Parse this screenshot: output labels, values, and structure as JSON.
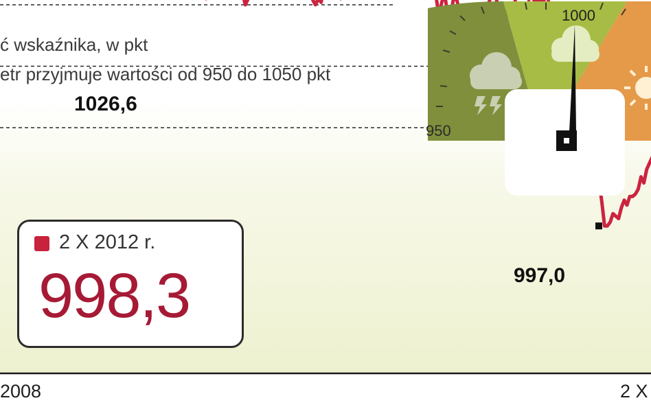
{
  "subtitle": {
    "line1": "ć wskaźnika, w pkt",
    "line2": "etr przyjmuje wartości od 950 do 1050 pkt"
  },
  "gauge": {
    "label_min": "950",
    "label_mid": "1000",
    "colors": {
      "left": "#7f8f3c",
      "middle": "#a6bc45",
      "right": "#e59a4a",
      "face": "#ffffff",
      "needle": "#111111"
    },
    "icons": [
      "storm-cloud-icon",
      "cloud-icon",
      "sun-icon"
    ]
  },
  "value_box": {
    "date": "2 X 2012 r.",
    "value": "998,3",
    "marker_color": "#c8223c",
    "value_color": "#a61a35"
  },
  "chart_data": {
    "type": "line",
    "title": "",
    "xlabel": "",
    "ylabel": "",
    "x_tick_labels": [
      "2008",
      "2 X"
    ],
    "ylim": [
      985,
      1032
    ],
    "grid": true,
    "series_color": "#cc2440",
    "annotations": [
      {
        "text": "1026,6",
        "index": 18,
        "value": 1026.6
      },
      {
        "text": "997,0",
        "index": 208,
        "value": 997.0
      }
    ],
    "values": [
      1024.2,
      1023.2,
      1023.1,
      1022.9,
      1022.8,
      1023.5,
      1022.5,
      1023.6,
      1024.9,
      1024.6,
      1025.1,
      1025.1,
      1025.2,
      1025.8,
      1026.7,
      1025.6,
      1025.9,
      1026.5,
      1026.6,
      1026.7,
      1025.8,
      1026.3,
      1025.1,
      1026.0,
      1025.7,
      1025.8,
      1025.2,
      1025.2,
      1025.6,
      1025.9,
      1024.7,
      1025.6,
      1024.7,
      1025.0,
      1025.6,
      1025.9,
      1025.2,
      1024.8,
      1025.9,
      1024.2,
      1024.5,
      1025.3,
      1024.9,
      1024.8,
      1025.7,
      1025.0,
      1025.3,
      1024.8,
      1024.8,
      1024.9,
      1023.7,
      1023.6,
      1021.7,
      1021.7,
      1022.2,
      1021.3,
      1021.8,
      1020.9,
      1021.5,
      1021.6,
      1022.6,
      1021.4,
      1021.4,
      1022.1,
      1019.5,
      1015.6,
      1015.8,
      1015.6,
      1015.8,
      1016.0,
      1015.5,
      1016.5,
      1016.7,
      1017.2,
      1016.4,
      1017.5,
      1016.6,
      1016.2,
      1016.0,
      1015.6,
      1016.6,
      1015.9,
      1015.8,
      1015.9,
      1015.0,
      1015.5,
      1016.3,
      1015.6,
      1016.4,
      1016.8,
      1016.4,
      1016.8,
      1017.3,
      1017.6,
      1016.8,
      1018.1,
      1018.7,
      1017.6,
      1018.1,
      1017.6,
      1017.9,
      1017.7,
      1017.3,
      1017.1,
      1016.3,
      1017.1,
      1017.0,
      1016.8,
      1015.4,
      1015.0,
      1015.5,
      1015.2,
      1016.3,
      1016.0,
      1015.7,
      1017.0,
      1016.9,
      1016.4,
      1015.5,
      1017.5,
      1017.7,
      1016.9,
      1017.5,
      1017.6,
      1018.5,
      1017.4,
      1017.4,
      1018.1,
      1018.0,
      1017.2,
      1017.6,
      1017.8,
      1018.0,
      1017.5,
      1017.3,
      1017.3,
      1017.8,
      1017.6,
      1017.1,
      1017.1,
      1017.2,
      1017.6,
      1017.2,
      1016.2,
      1017.4,
      1017.1,
      1017.6,
      1016.8,
      1016.2,
      1016.8,
      1016.0,
      1015.8,
      1015.6,
      1014.1,
      1015.2,
      1015.9,
      1014.4,
      1013.9,
      1015.3,
      1015.7,
      1014.8,
      1013.7,
      1013.4,
      1013.6,
      1013.2,
      1013.4,
      1014.2,
      1013.4,
      1013.7,
      1014.5,
      1014.7,
      1015.3,
      1016.6,
      1016.0,
      1014.8,
      1014.6,
      1014.6,
      1014.4,
      1014.0,
      1014.1,
      1015.1,
      1016.6,
      1016.8,
      1016.2,
      1016.5,
      1015.4,
      1015.9,
      1015.3,
      1015.4,
      1015.1,
      1015.6,
      1014.9,
      1015.3,
      1013.9,
      1014.4,
      1013.8,
      1013.5,
      1012.7,
      1011.1,
      1010.4,
      1010.3,
      1009.9,
      1008.5,
      1008.9,
      1008.8,
      1006.9,
      1005.1,
      1004.8,
      1004.0,
      1002.8,
      1000.7,
      999.0,
      997.0,
      997.0,
      997.3,
      998.0,
      997.8,
      997.6,
      998.5,
      999.1,
      998.7,
      999.4,
      999.4,
      999.6,
      1000.0,
      1001.0,
      1000.5,
      1001.6,
      1002.1,
      1002.6,
      1002.9,
      1002.6
    ]
  }
}
